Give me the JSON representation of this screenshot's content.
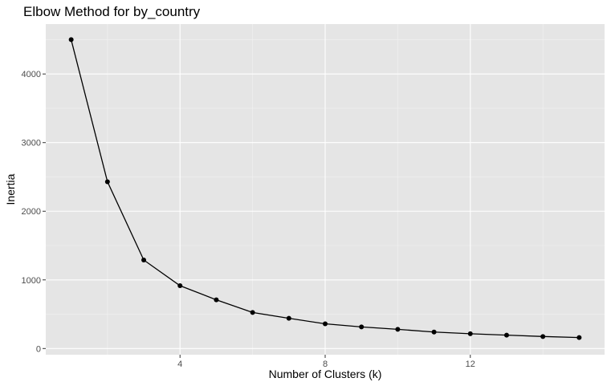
{
  "chart_data": {
    "type": "line",
    "title": "Elbow Method for by_country",
    "xlabel": "Number of Clusters (k)",
    "ylabel": "Inertia",
    "x": [
      1,
      2,
      3,
      4,
      5,
      6,
      7,
      8,
      9,
      10,
      11,
      12,
      13,
      14,
      15
    ],
    "values": [
      4500,
      2430,
      1290,
      915,
      710,
      525,
      440,
      360,
      315,
      280,
      240,
      215,
      195,
      175,
      160
    ],
    "x_ticks": [
      4,
      8,
      12
    ],
    "x_tick_labels": [
      "4",
      "8",
      "12"
    ],
    "y_ticks": [
      0,
      1000,
      2000,
      3000,
      4000
    ],
    "y_tick_labels": [
      "0",
      "1000",
      "2000",
      "3000",
      "4000"
    ],
    "xlim": [
      0.3,
      15.7
    ],
    "ylim": [
      -90,
      4727
    ],
    "grid": true,
    "legend": false,
    "colors": {
      "panel": "#e5e5e5",
      "line": "#000000",
      "points": "#000000",
      "grid": "#ffffff"
    }
  }
}
